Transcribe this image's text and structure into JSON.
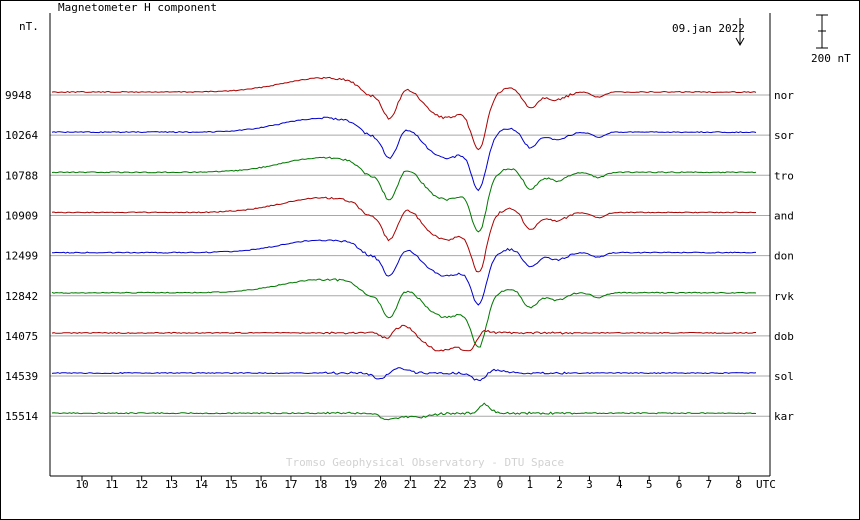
{
  "chart_data": {
    "type": "line",
    "title": "Magnetometer H component",
    "ylabel": "nT.",
    "date": "09.jan 2022",
    "scale_label": "200 nT",
    "xlabel": "UTC",
    "x_ticks": [
      "10",
      "11",
      "12",
      "13",
      "14",
      "15",
      "16",
      "17",
      "18",
      "19",
      "20",
      "21",
      "22",
      "23",
      "0",
      "1",
      "2",
      "3",
      "4",
      "5",
      "6",
      "7",
      "8"
    ],
    "watermark": "Tromso Geophysical Observatory - DTU Space",
    "series": [
      {
        "name": "nor",
        "baseline": "9948",
        "color": "#aa0000",
        "shape": "bay",
        "amp": 1.0
      },
      {
        "name": "sor",
        "baseline": "10264",
        "color": "#0000cc",
        "shape": "bay",
        "amp": 1.0
      },
      {
        "name": "tro",
        "baseline": "10788",
        "color": "#007700",
        "shape": "bay",
        "amp": 1.05
      },
      {
        "name": "and",
        "baseline": "10909",
        "color": "#aa0000",
        "shape": "bay",
        "amp": 1.05
      },
      {
        "name": "don",
        "baseline": "12499",
        "color": "#0000cc",
        "shape": "bay",
        "amp": 0.9
      },
      {
        "name": "rvk",
        "baseline": "12842",
        "color": "#007700",
        "shape": "bay",
        "amp": 0.95
      },
      {
        "name": "dob",
        "baseline": "14075",
        "color": "#aa0000",
        "shape": "mid",
        "amp": 1.0
      },
      {
        "name": "sol",
        "baseline": "14539",
        "color": "#0000cc",
        "shape": "small",
        "amp": 1.0
      },
      {
        "name": "kar",
        "baseline": "15514",
        "color": "#007700",
        "shape": "small2",
        "amp": 1.0
      }
    ]
  }
}
